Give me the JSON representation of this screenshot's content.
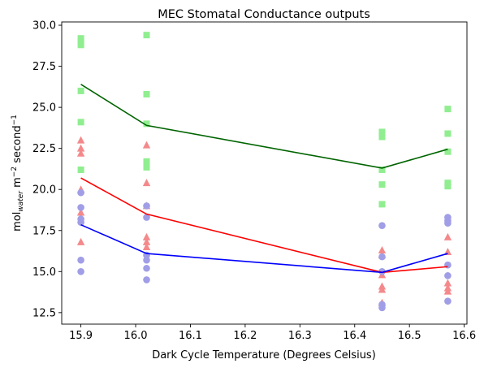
{
  "chart_data": {
    "type": "scatter",
    "title": "MEC Stomatal Conductance outputs",
    "xlabel": "Dark Cycle Temperature (Degrees Celsius)",
    "ylabel": {
      "prefix": "mol",
      "subscript": "water",
      "middle": " m",
      "exp1": "−2",
      "suffix": " second",
      "exp2": "−1"
    },
    "xlim": [
      15.865,
      16.605
    ],
    "ylim": [
      11.8,
      30.2
    ],
    "grid": false,
    "xticks": [
      15.9,
      16.0,
      16.1,
      16.2,
      16.3,
      16.4,
      16.5,
      16.6
    ],
    "xtick_labels": [
      "15.9",
      "16.0",
      "16.1",
      "16.2",
      "16.3",
      "16.4",
      "16.5",
      "16.6"
    ],
    "yticks": [
      12.5,
      15.0,
      17.5,
      20.0,
      22.5,
      25.0,
      27.5,
      30.0
    ],
    "ytick_labels": [
      "12.5",
      "15.0",
      "17.5",
      "20.0",
      "22.5",
      "25.0",
      "27.5",
      "30.0"
    ],
    "x": [
      15.9,
      16.02,
      16.45,
      16.57
    ],
    "series": [
      {
        "marker": "square",
        "color": "#90ee90",
        "line_color": "#006400",
        "mean": [
          26.4,
          23.9,
          21.3,
          22.45
        ],
        "points": [
          [
            29.2,
            29.0,
            28.8,
            26.0,
            24.1,
            21.2
          ],
          [
            29.4,
            25.8,
            24.0,
            21.7,
            21.5,
            21.35
          ],
          [
            23.5,
            23.2,
            21.2,
            20.3,
            19.1
          ],
          [
            24.9,
            23.4,
            22.3,
            20.4,
            20.2
          ]
        ]
      },
      {
        "marker": "triangle",
        "color": "#f4898b",
        "line_color": "#ff0000",
        "mean": [
          20.7,
          18.5,
          14.95,
          15.3
        ],
        "points": [
          [
            23.0,
            22.5,
            22.2,
            20.0,
            18.6,
            16.8
          ],
          [
            22.7,
            20.4,
            19.0,
            17.1,
            16.8,
            16.5
          ],
          [
            16.3,
            16.0,
            14.8,
            14.1,
            13.9,
            13.1
          ],
          [
            17.1,
            16.2,
            14.3,
            14.0,
            13.8
          ]
        ]
      },
      {
        "marker": "circle",
        "color": "#a09ee6",
        "line_color": "#0000ff",
        "mean": [
          17.85,
          16.1,
          14.95,
          16.1
        ],
        "points": [
          [
            19.8,
            18.9,
            18.2,
            18.0,
            15.7,
            15.0
          ],
          [
            19.0,
            18.3,
            16.0,
            15.7,
            15.2,
            14.5
          ],
          [
            17.8,
            15.9,
            15.0,
            13.0,
            12.8
          ],
          [
            18.3,
            18.1,
            17.95,
            15.4,
            14.75,
            13.2
          ]
        ]
      }
    ]
  }
}
